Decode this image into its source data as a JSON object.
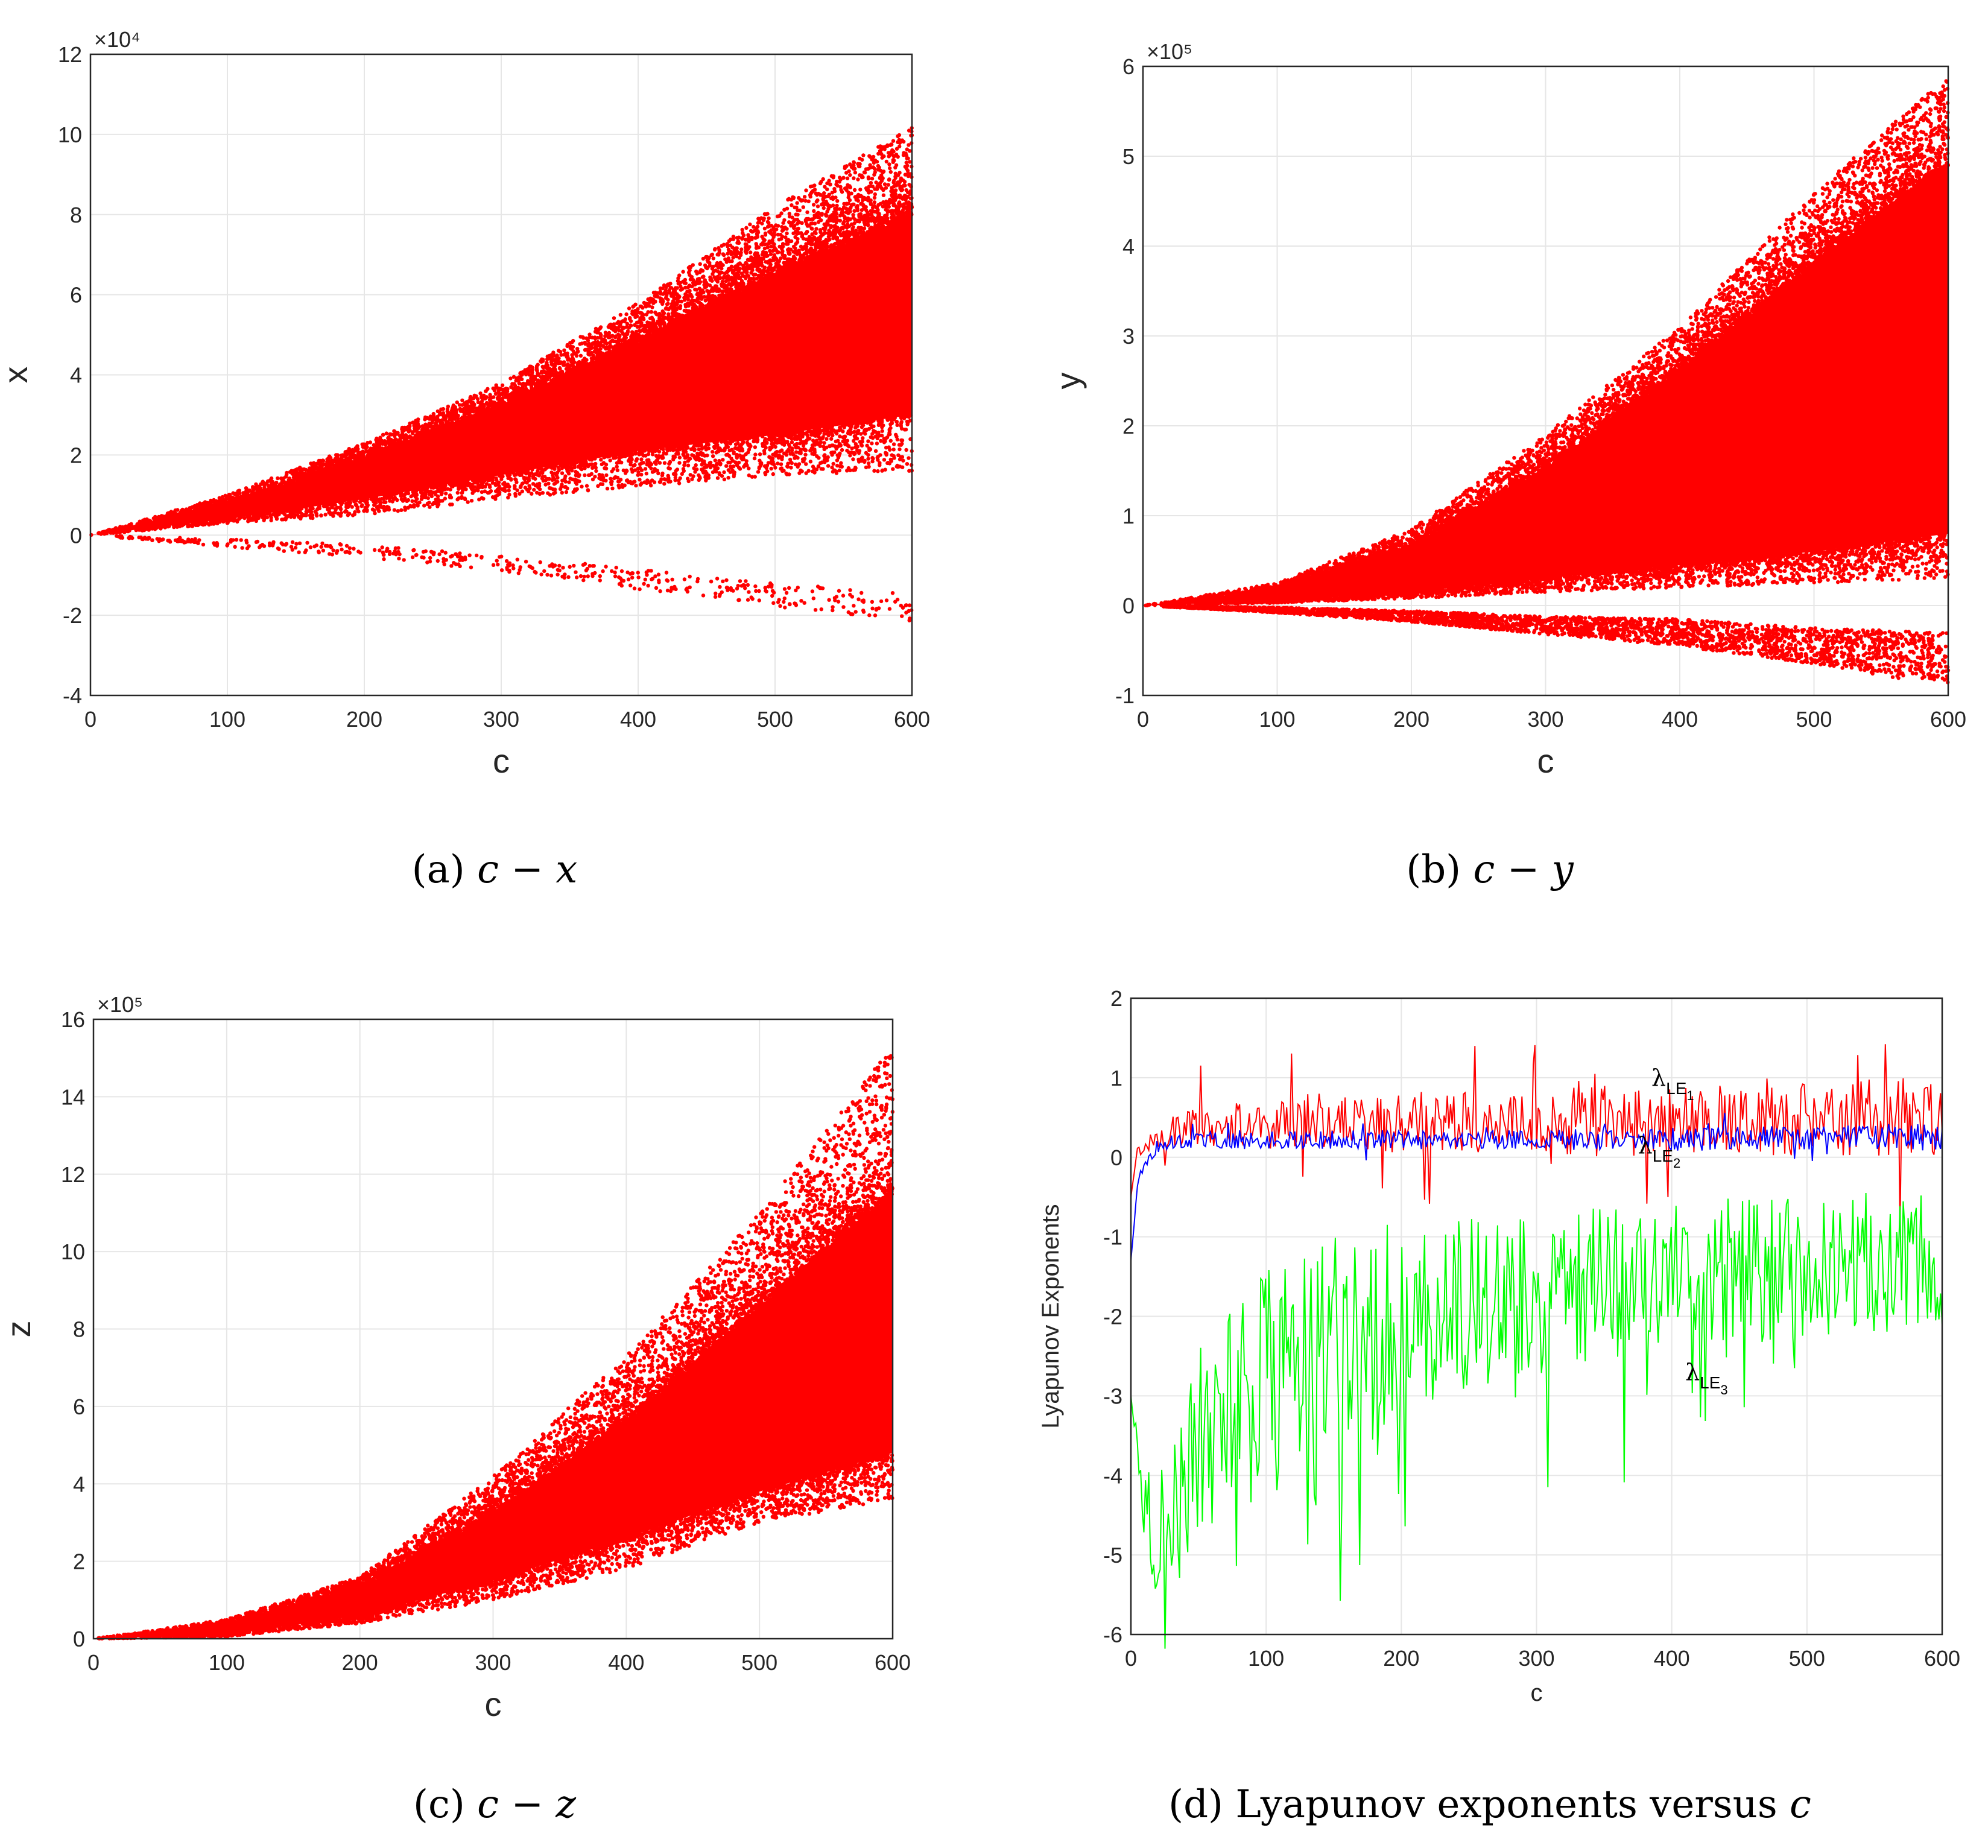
{
  "colors": {
    "scatter": "#ff0000",
    "le1": "#ff0000",
    "le2": "#0000ff",
    "le3": "#00ff00",
    "grid": "#e6e6e6",
    "axis": "#262626"
  },
  "panels": {
    "a": {
      "caption_label": "(a)",
      "caption_math": "c − x",
      "chart_data": {
        "type": "scatter",
        "xlabel": "c",
        "ylabel": "x",
        "exponent_label": "×10⁴",
        "scale": 10000,
        "xlim": [
          0,
          600
        ],
        "ylim": [
          -4,
          12
        ],
        "xticks": [
          0,
          100,
          200,
          300,
          400,
          500,
          600
        ],
        "yticks": [
          -4,
          -2,
          0,
          2,
          4,
          6,
          8,
          10,
          12
        ],
        "xtick_labels": [
          "0",
          "100",
          "200",
          "300",
          "400",
          "500",
          "600"
        ],
        "ytick_labels": [
          "-4",
          "-2",
          "0",
          "2",
          "4",
          "6",
          "8",
          "10",
          "12"
        ],
        "envelope": {
          "x": [
            0,
            100,
            200,
            300,
            400,
            500,
            600
          ],
          "upper": [
            0,
            1.0,
            2.3,
            3.8,
            5.8,
            8.2,
            10.2
          ],
          "dense_upper": [
            0,
            0.8,
            1.9,
            3.2,
            4.8,
            6.5,
            8.0
          ],
          "dense_lower": [
            0,
            0.4,
            0.9,
            1.5,
            2.1,
            2.5,
            3.0
          ],
          "lower": [
            0,
            0.3,
            0.5,
            0.9,
            1.2,
            1.5,
            1.6
          ]
        },
        "negative_branch": {
          "x": [
            0,
            100,
            200,
            300,
            400,
            500,
            600
          ],
          "center": [
            0,
            -0.2,
            -0.4,
            -0.7,
            -1.1,
            -1.5,
            -1.8
          ],
          "spread": [
            0,
            0.1,
            0.15,
            0.2,
            0.25,
            0.3,
            0.35
          ],
          "density": 0.05
        }
      }
    },
    "b": {
      "caption_label": "(b)",
      "caption_math": "c − y",
      "chart_data": {
        "type": "scatter",
        "xlabel": "c",
        "ylabel": "y",
        "exponent_label": "×10⁵",
        "scale": 100000,
        "xlim": [
          0,
          600
        ],
        "ylim": [
          -1,
          6
        ],
        "xticks": [
          0,
          100,
          200,
          300,
          400,
          500,
          600
        ],
        "yticks": [
          -1,
          0,
          1,
          2,
          3,
          4,
          5,
          6
        ],
        "xtick_labels": [
          "0",
          "100",
          "200",
          "300",
          "400",
          "500",
          "600"
        ],
        "ytick_labels": [
          "-1",
          "0",
          "1",
          "2",
          "3",
          "4",
          "5",
          "6"
        ],
        "envelope": {
          "x": [
            0,
            100,
            200,
            300,
            400,
            500,
            600
          ],
          "upper": [
            0,
            0.25,
            0.85,
            1.9,
            3.1,
            4.6,
            5.9
          ],
          "dense_upper": [
            0,
            0.18,
            0.65,
            1.5,
            2.6,
            3.8,
            4.9
          ],
          "dense_lower": [
            0,
            0.05,
            0.15,
            0.3,
            0.45,
            0.6,
            0.8
          ],
          "lower": [
            0,
            0.03,
            0.08,
            0.15,
            0.2,
            0.25,
            0.3
          ]
        },
        "negative_branch": {
          "x": [
            0,
            100,
            200,
            300,
            400,
            500,
            600
          ],
          "center": [
            0,
            -0.05,
            -0.12,
            -0.22,
            -0.3,
            -0.45,
            -0.6
          ],
          "spread": [
            0,
            0.03,
            0.06,
            0.1,
            0.15,
            0.2,
            0.3
          ],
          "density": 0.35
        }
      }
    },
    "c": {
      "caption_label": "(c)",
      "caption_math": "c − z",
      "chart_data": {
        "type": "scatter",
        "xlabel": "c",
        "ylabel": "z",
        "exponent_label": "×10⁵",
        "scale": 100000,
        "xlim": [
          0,
          600
        ],
        "ylim": [
          0,
          16
        ],
        "xticks": [
          0,
          100,
          200,
          300,
          400,
          500,
          600
        ],
        "yticks": [
          0,
          2,
          4,
          6,
          8,
          10,
          12,
          14,
          16
        ],
        "xtick_labels": [
          "0",
          "100",
          "200",
          "300",
          "400",
          "500",
          "600"
        ],
        "ytick_labels": [
          "0",
          "2",
          "4",
          "6",
          "8",
          "10",
          "12",
          "14",
          "16"
        ],
        "envelope": {
          "x": [
            0,
            100,
            200,
            300,
            400,
            500,
            600
          ],
          "upper": [
            0,
            0.5,
            1.6,
            4.2,
            7.3,
            11.0,
            15.3
          ],
          "dense_upper": [
            0,
            0.35,
            1.3,
            3.2,
            5.6,
            8.5,
            11.5
          ],
          "dense_lower": [
            0,
            0.1,
            0.6,
            1.5,
            2.6,
            3.8,
            4.8
          ],
          "lower": [
            0,
            0.05,
            0.4,
            1.0,
            1.8,
            3.0,
            3.6
          ]
        },
        "negative_branch": null
      }
    },
    "d": {
      "caption_label": "(d)",
      "caption_text": "Lyapunov exponents versus",
      "caption_math": "c",
      "chart_data": {
        "type": "line",
        "xlabel": "c",
        "ylabel": "Lyapunov Exponents",
        "xlim": [
          0,
          600
        ],
        "ylim": [
          -6,
          2
        ],
        "xticks": [
          0,
          100,
          200,
          300,
          400,
          500,
          600
        ],
        "yticks": [
          -6,
          -5,
          -4,
          -3,
          -2,
          -1,
          0,
          1,
          2
        ],
        "xtick_labels": [
          "0",
          "100",
          "200",
          "300",
          "400",
          "500",
          "600"
        ],
        "ytick_labels": [
          "-6",
          "-5",
          "-4",
          "-3",
          "-2",
          "-1",
          "0",
          "1",
          "2"
        ],
        "series": [
          {
            "name": "λLE1",
            "label_main": "λ",
            "label_sub": "LE",
            "label_subsub": "1",
            "label_at": [
              385,
              0.9
            ],
            "x": [
              0,
              5,
              10,
              20,
              40,
              60,
              80,
              100,
              150,
              200,
              250,
              300,
              350,
              400,
              450,
              500,
              550,
              600
            ],
            "mean": [
              -0.5,
              0.1,
              0.15,
              0.25,
              0.35,
              0.4,
              0.4,
              0.45,
              0.45,
              0.45,
              0.45,
              0.45,
              0.45,
              0.45,
              0.45,
              0.5,
              0.5,
              0.5
            ],
            "amp": [
              0,
              0.05,
              0.1,
              0.15,
              0.25,
              0.3,
              0.3,
              0.35,
              0.35,
              0.4,
              0.4,
              0.4,
              0.45,
              0.45,
              0.45,
              0.45,
              0.5,
              0.5
            ]
          },
          {
            "name": "λLE2",
            "label_main": "λ",
            "label_sub": "LE",
            "label_subsub": "2",
            "label_at": [
              375,
              0.05
            ],
            "x": [
              0,
              5,
              10,
              20,
              40,
              60,
              100,
              200,
              300,
              400,
              500,
              600
            ],
            "mean": [
              -1.3,
              -0.3,
              -0.1,
              0.15,
              0.22,
              0.22,
              0.22,
              0.22,
              0.22,
              0.22,
              0.25,
              0.25
            ],
            "amp": [
              0,
              0.05,
              0.05,
              0.08,
              0.1,
              0.12,
              0.12,
              0.12,
              0.12,
              0.15,
              0.15,
              0.18
            ]
          },
          {
            "name": "λLE3",
            "label_main": "λ",
            "label_sub": "LE",
            "label_subsub": "3",
            "label_at": [
              410,
              -2.8
            ],
            "x": [
              0,
              10,
              20,
              30,
              40,
              60,
              80,
              100,
              150,
              200,
              250,
              300,
              350,
              400,
              450,
              500,
              550,
              600
            ],
            "mean": [
              -3.0,
              -4.4,
              -4.8,
              -4.5,
              -4.0,
              -3.4,
              -3.0,
              -2.7,
              -2.3,
              -2.0,
              -1.8,
              -1.7,
              -1.6,
              -1.5,
              -1.4,
              -1.4,
              -1.3,
              -1.3
            ],
            "amp": [
              0,
              0.5,
              0.8,
              1.0,
              1.2,
              1.3,
              1.4,
              1.4,
              1.3,
              1.2,
              1.1,
              1.0,
              1.0,
              0.9,
              0.9,
              0.9,
              0.9,
              0.9
            ]
          }
        ]
      }
    }
  }
}
